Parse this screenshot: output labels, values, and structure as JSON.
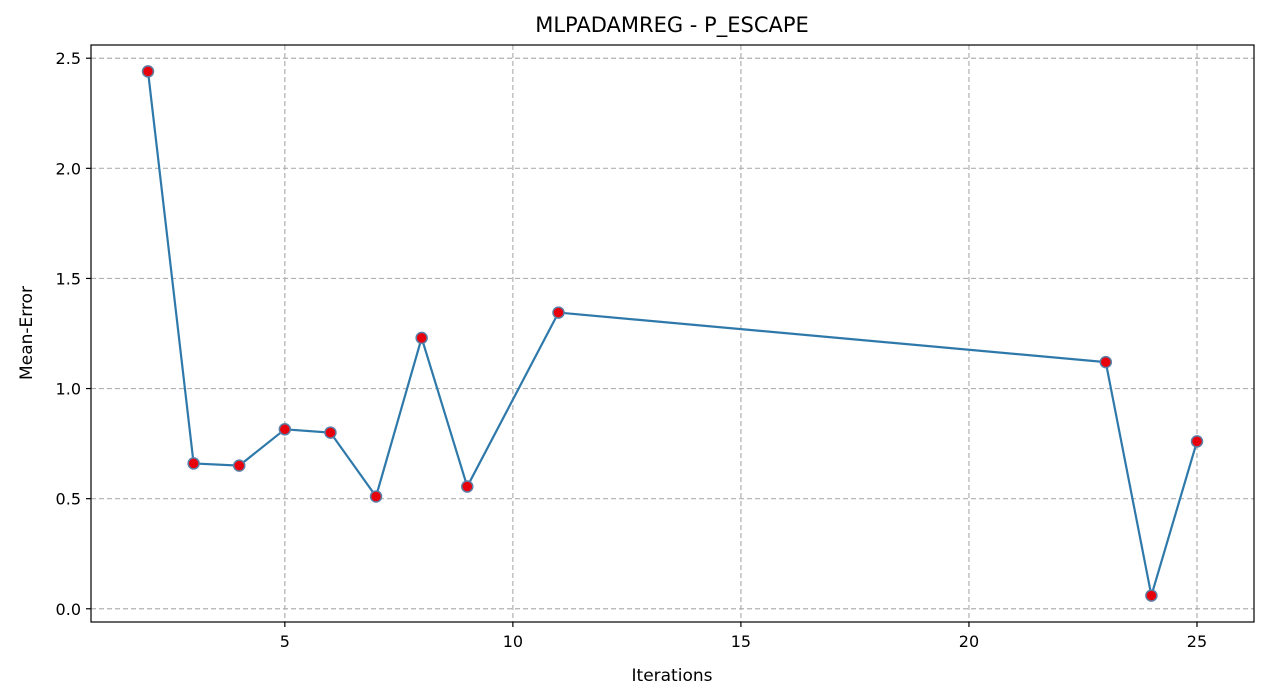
{
  "chart_data": {
    "type": "line",
    "title": "MLPADAMREG - P_ESCAPE",
    "xlabel": "Iterations",
    "ylabel": "Mean-Error",
    "xlim": [
      0.75,
      26.25
    ],
    "ylim": [
      -0.06,
      2.56
    ],
    "xticks": [
      5,
      10,
      15,
      20,
      25
    ],
    "yticks": [
      0.0,
      0.5,
      1.0,
      1.5,
      2.0,
      2.5
    ],
    "grid": true,
    "series": [
      {
        "x": [
          2,
          3,
          4,
          5,
          6,
          7,
          8,
          9,
          11,
          23,
          24,
          25
        ],
        "y": [
          2.44,
          0.66,
          0.65,
          0.815,
          0.8,
          0.51,
          1.23,
          0.555,
          1.345,
          1.12,
          0.06,
          0.76
        ],
        "line_color": "#2e79aa",
        "marker_face_color": "#e8000b",
        "marker_edge_color": "#5b7fa6"
      }
    ]
  }
}
